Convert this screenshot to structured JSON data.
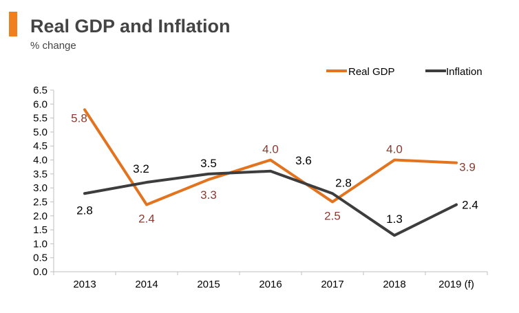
{
  "header": {
    "title": "Real GDP and Inflation",
    "subtitle": "% change",
    "accent_color": "#f07f1d"
  },
  "chart_data": {
    "type": "line",
    "categories": [
      "2013",
      "2014",
      "2015",
      "2016",
      "2017",
      "2018",
      "2019 (f)"
    ],
    "ylim": [
      0,
      6.5
    ],
    "yticks": [
      "0.0",
      "0.5",
      "1.0",
      "1.5",
      "2.0",
      "2.5",
      "3.0",
      "3.5",
      "4.0",
      "4.5",
      "5.0",
      "5.5",
      "6.0",
      "6.5"
    ],
    "grid": false,
    "legend_position": "top-right",
    "series": [
      {
        "name": "Real GDP",
        "color": "#e3741f",
        "label_color": "#8b3a2e",
        "values": [
          5.8,
          2.4,
          3.3,
          4.0,
          2.5,
          4.0,
          3.9
        ],
        "labels": [
          "5.8",
          "2.4",
          "3.3",
          "4.0",
          "2.5",
          "4.0",
          "3.9"
        ]
      },
      {
        "name": "Inflation",
        "color": "#3d3d3d",
        "label_color": "#000000",
        "values": [
          2.8,
          3.2,
          3.5,
          3.6,
          2.8,
          1.3,
          2.4
        ],
        "labels": [
          "2.8",
          "3.2",
          "3.5",
          "3.6",
          "2.8",
          "1.3",
          "2.4"
        ]
      }
    ]
  }
}
